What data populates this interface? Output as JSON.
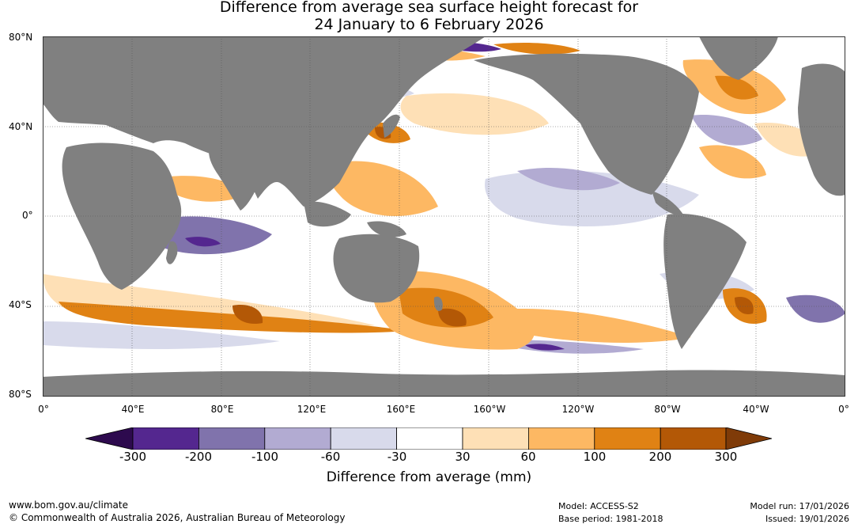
{
  "title": {
    "line1": "Difference from average sea surface height forecast for",
    "line2": "24 January to 6 February 2026"
  },
  "map": {
    "lat_labels": [
      "80°N",
      "40°N",
      "0°",
      "40°S",
      "80°S"
    ],
    "lon_labels": [
      "0°",
      "40°E",
      "80°E",
      "120°E",
      "160°E",
      "160°W",
      "120°W",
      "80°W",
      "40°W",
      "0°"
    ],
    "colors": {
      "land": "#808080",
      "ocean_neutral": "#ffffff",
      "gridline": "#555555"
    }
  },
  "colorbar": {
    "title": "Difference from average (mm)",
    "tick_labels": [
      "-300",
      "-200",
      "-100",
      "-60",
      "-30",
      "30",
      "60",
      "100",
      "200",
      "300"
    ],
    "colors": [
      "#2d0a4e",
      "#54278f",
      "#8073ac",
      "#b2abd2",
      "#d8daeb",
      "#ffffff",
      "#fee0b6",
      "#fdb863",
      "#e08214",
      "#b35806",
      "#7f3b08"
    ]
  },
  "footer": {
    "website": "www.bom.gov.au/climate",
    "copyright": "© Commonwealth of Australia 2026, Australian Bureau of Meteorology",
    "model": "Model: ACCESS-S2",
    "base_period": "Base period: 1981-2018",
    "model_run": "Model run: 17/01/2026",
    "issued": "Issued: 19/01/2026"
  }
}
